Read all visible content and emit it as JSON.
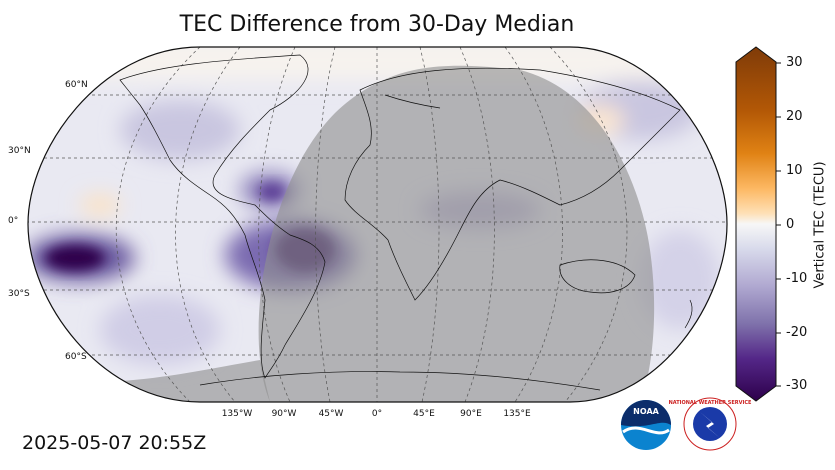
{
  "title": "TEC Difference from 30-Day Median",
  "timestamp": "2025-05-07 20:55Z",
  "latitude_labels": [
    "60°N",
    "30°N",
    "0°",
    "30°S",
    "60°S"
  ],
  "longitude_labels": [
    "135°W",
    "90°W",
    "45°W",
    "0°",
    "45°E",
    "90°E",
    "135°E"
  ],
  "colorbar": {
    "label": "Vertical TEC (TECU)",
    "ticks": [
      "30",
      "20",
      "10",
      "0",
      "-10",
      "-20",
      "-30"
    ],
    "min": -30,
    "max": 30,
    "colors": {
      "high": "#7f3b08",
      "mid_high": "#e08214",
      "zero": "#f7f7f7",
      "mid_low": "#8073ac",
      "low": "#2d004b"
    }
  },
  "logos": {
    "noaa": "NOAA",
    "nws": "NATIONAL WEATHER SERVICE"
  }
}
